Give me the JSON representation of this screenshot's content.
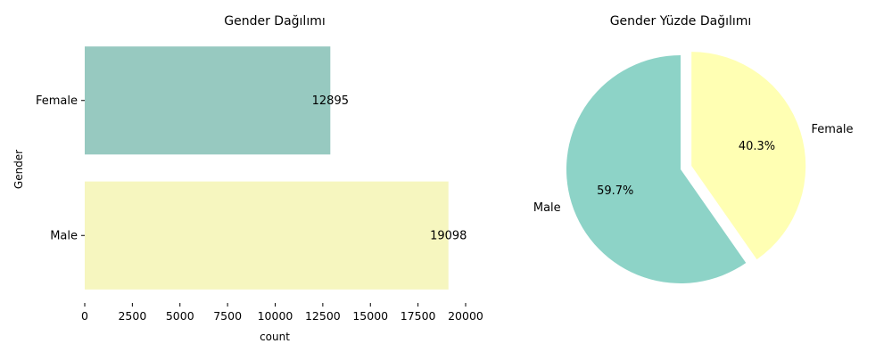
{
  "chart_data": [
    {
      "type": "bar",
      "orientation": "horizontal",
      "title": "Gender Dağılımı",
      "xlabel": "count",
      "ylabel": "Gender",
      "categories": [
        "Female",
        "Male"
      ],
      "values": [
        12895,
        19098
      ],
      "data_labels": [
        "12895",
        "19098"
      ],
      "colors": [
        "#97c9c0",
        "#f6f6bf"
      ],
      "xlim": [
        0,
        20000
      ],
      "xticks": [
        0,
        2500,
        5000,
        7500,
        10000,
        12500,
        15000,
        17500,
        20000
      ],
      "xtick_labels": [
        "0",
        "2500",
        "5000",
        "7500",
        "10000",
        "12500",
        "15000",
        "17500",
        "20000"
      ],
      "grid": false
    },
    {
      "type": "pie",
      "title": "Gender Yüzde Dağılımı",
      "labels": [
        "Male",
        "Female"
      ],
      "values": [
        59.7,
        40.3
      ],
      "pct_labels": [
        "59.7%",
        "40.3%"
      ],
      "colors": [
        "#8dd3c7",
        "#ffffb3"
      ],
      "exploded": "Female"
    }
  ]
}
